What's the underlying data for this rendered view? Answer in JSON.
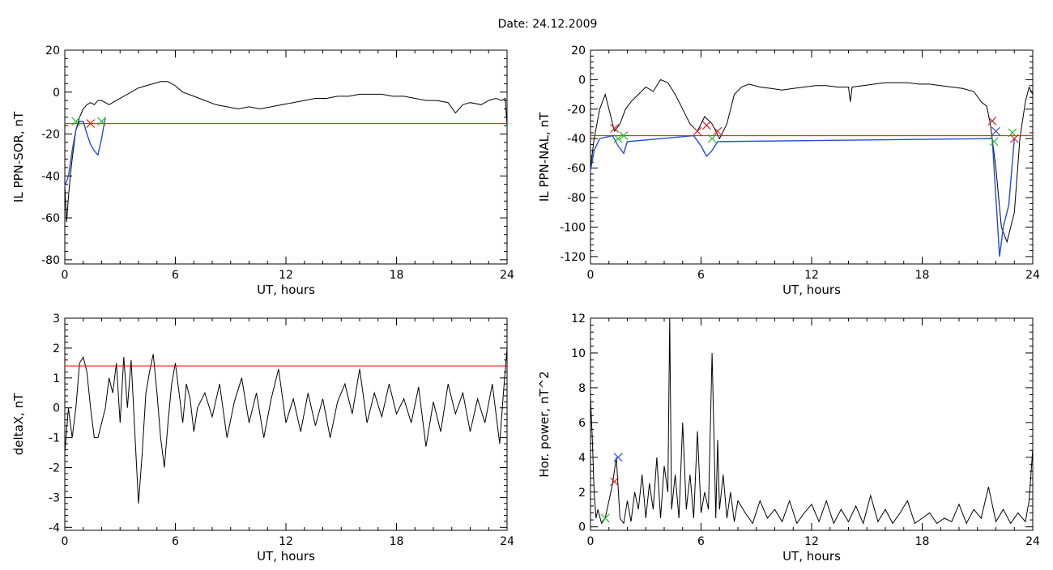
{
  "page_title": "Date:  24.12.2009",
  "colors": {
    "axis": "#000000",
    "signal": "#000000",
    "threshold": "#ff0000",
    "substorm": "#1f4fd8",
    "marker_start": "#22bb22",
    "marker_peak": "#d02020",
    "marker_blue": "#1f4fd8"
  },
  "chart_data": [
    {
      "type": "line",
      "xlabel": "UT, hours",
      "ylabel": "IL PPN-SOR, nT",
      "xlim": [
        0,
        24
      ],
      "ylim": [
        -82,
        20
      ],
      "xticks": [
        0,
        6,
        12,
        18,
        24
      ],
      "yticks": [
        -80,
        -60,
        -40,
        -20,
        0,
        20
      ],
      "threshold": -15,
      "series": [
        {
          "x": [
            0,
            0.1,
            0.2,
            0.3,
            0.4,
            0.5,
            0.6,
            0.8,
            1.0,
            1.2,
            1.4,
            1.6,
            1.8,
            2.0,
            2.2,
            2.4,
            2.8,
            3.2,
            3.6,
            4.0,
            4.4,
            4.8,
            5.2,
            5.6,
            6.0,
            6.4,
            7.0,
            7.6,
            8.2,
            8.8,
            9.4,
            10.0,
            10.6,
            11.2,
            11.8,
            12.4,
            13.0,
            13.6,
            14.2,
            14.8,
            15.4,
            16.0,
            16.6,
            17.2,
            17.8,
            18.4,
            19.0,
            19.6,
            20.2,
            20.8,
            21.2,
            21.6,
            22.0,
            22.6,
            23.0,
            23.4,
            23.7,
            23.9,
            24.0
          ],
          "y": [
            -45,
            -62,
            -50,
            -40,
            -32,
            -25,
            -18,
            -12,
            -8,
            -6,
            -5,
            -6,
            -4,
            -4,
            -5,
            -6,
            -4,
            -2,
            0,
            2,
            3,
            4,
            5,
            5,
            3,
            0,
            -2,
            -4,
            -6,
            -7,
            -8,
            -7,
            -8,
            -7,
            -6,
            -5,
            -4,
            -3,
            -3,
            -2,
            -2,
            -1,
            -1,
            -1,
            -2,
            -2,
            -3,
            -4,
            -4,
            -5,
            -10,
            -6,
            -5,
            -6,
            -4,
            -3,
            -4,
            -3,
            -16
          ]
        },
        {
          "x": [
            0.0,
            0.2,
            0.4,
            0.6,
            0.8,
            1.0,
            1.2,
            1.4,
            1.6,
            1.8,
            2.0,
            2.2
          ],
          "y": [
            -45,
            -40,
            -28,
            -18,
            -14,
            -14,
            -20,
            -25,
            -28,
            -30,
            -22,
            -12
          ]
        }
      ],
      "markers": [
        {
          "x": 0.6,
          "y": -14,
          "kind": "start"
        },
        {
          "x": 1.4,
          "y": -15,
          "kind": "peak"
        },
        {
          "x": 2.0,
          "y": -14,
          "kind": "start"
        }
      ]
    },
    {
      "type": "line",
      "xlabel": "UT, hours",
      "ylabel": "IL PPN-NAL, nT",
      "xlim": [
        0,
        24
      ],
      "ylim": [
        -125,
        20
      ],
      "xticks": [
        0,
        6,
        12,
        18,
        24
      ],
      "yticks": [
        -120,
        -100,
        -80,
        -60,
        -40,
        -20,
        0,
        20
      ],
      "threshold": -38,
      "series": [
        {
          "x": [
            0,
            0.2,
            0.5,
            0.8,
            1.0,
            1.3,
            1.6,
            1.9,
            2.2,
            2.6,
            3.0,
            3.4,
            3.8,
            4.2,
            4.6,
            5.0,
            5.4,
            5.8,
            6.2,
            6.6,
            7.0,
            7.4,
            7.8,
            8.2,
            8.6,
            9.2,
            9.8,
            10.4,
            11.0,
            11.6,
            12.2,
            12.8,
            13.4,
            14.0,
            14.1,
            14.2,
            14.8,
            15.4,
            16.0,
            16.6,
            17.2,
            17.8,
            18.4,
            19.0,
            19.6,
            20.2,
            20.8,
            21.2,
            21.5,
            21.7,
            22.0,
            22.3,
            22.6,
            23.0,
            23.3,
            23.6,
            23.8,
            24.0
          ],
          "y": [
            -60,
            -40,
            -20,
            -10,
            -20,
            -35,
            -30,
            -20,
            -15,
            -10,
            -5,
            -8,
            0,
            -2,
            -10,
            -20,
            -30,
            -35,
            -25,
            -30,
            -40,
            -30,
            -10,
            -5,
            -3,
            -5,
            -6,
            -7,
            -6,
            -5,
            -4,
            -4,
            -5,
            -5,
            -15,
            -5,
            -4,
            -3,
            -2,
            -2,
            -2,
            -3,
            -3,
            -4,
            -5,
            -6,
            -8,
            -15,
            -18,
            -30,
            -60,
            -100,
            -110,
            -90,
            -40,
            -15,
            -5,
            -10
          ]
        },
        {
          "x": [
            0.0,
            0.2,
            0.5,
            1.2,
            1.5,
            1.8,
            2.0,
            5.6,
            6.0,
            6.3,
            6.6,
            6.9,
            21.8,
            22.0,
            22.2,
            22.4,
            22.7,
            23.0
          ],
          "y": [
            -62,
            -48,
            -40,
            -38,
            -45,
            -50,
            -42,
            -38,
            -45,
            -52,
            -48,
            -42,
            -40,
            -80,
            -120,
            -100,
            -85,
            -40
          ]
        }
      ],
      "markers": [
        {
          "x": 1.3,
          "y": -33,
          "kind": "peak"
        },
        {
          "x": 1.5,
          "y": -40,
          "kind": "start"
        },
        {
          "x": 1.8,
          "y": -38,
          "kind": "start"
        },
        {
          "x": 5.8,
          "y": -35,
          "kind": "peak"
        },
        {
          "x": 6.3,
          "y": -31,
          "kind": "peak"
        },
        {
          "x": 6.6,
          "y": -40,
          "kind": "start"
        },
        {
          "x": 6.9,
          "y": -35,
          "kind": "peak"
        },
        {
          "x": 21.8,
          "y": -28,
          "kind": "peak"
        },
        {
          "x": 21.9,
          "y": -42,
          "kind": "start"
        },
        {
          "x": 22.0,
          "y": -35,
          "kind": "blue"
        },
        {
          "x": 22.9,
          "y": -36,
          "kind": "start"
        },
        {
          "x": 23.0,
          "y": -40,
          "kind": "peak"
        }
      ]
    },
    {
      "type": "line",
      "xlabel": "UT, hours",
      "ylabel": "deltaX, nT",
      "xlim": [
        0,
        24
      ],
      "ylim": [
        -4.1,
        3
      ],
      "xticks": [
        0,
        6,
        12,
        18,
        24
      ],
      "yticks": [
        -4,
        -3,
        -2,
        -1,
        0,
        1,
        2,
        3
      ],
      "threshold": 1.4,
      "series": [
        {
          "x": [
            0,
            0.2,
            0.4,
            0.6,
            0.8,
            1.0,
            1.2,
            1.4,
            1.6,
            1.8,
            2.0,
            2.2,
            2.4,
            2.6,
            2.8,
            3.0,
            3.2,
            3.4,
            3.6,
            3.8,
            4.0,
            4.2,
            4.4,
            4.6,
            4.8,
            5.0,
            5.2,
            5.4,
            5.6,
            5.8,
            6.0,
            6.2,
            6.4,
            6.6,
            6.8,
            7.0,
            7.2,
            7.6,
            8.0,
            8.4,
            8.8,
            9.2,
            9.6,
            10.0,
            10.4,
            10.8,
            11.2,
            11.6,
            12.0,
            12.4,
            12.8,
            13.2,
            13.6,
            14.0,
            14.4,
            14.8,
            15.2,
            15.6,
            16.0,
            16.4,
            16.8,
            17.2,
            17.6,
            18.0,
            18.4,
            18.8,
            19.2,
            19.6,
            20.0,
            20.4,
            20.8,
            21.2,
            21.6,
            22.0,
            22.4,
            22.8,
            23.2,
            23.6,
            23.8,
            24.0
          ],
          "y": [
            -1.5,
            0,
            -1,
            0,
            1.5,
            1.7,
            1.2,
            0,
            -1,
            -1,
            -0.5,
            0,
            1,
            0.5,
            1.5,
            -0.5,
            1.7,
            0,
            1.6,
            -0.8,
            -3.2,
            -1.5,
            0.5,
            1.2,
            1.8,
            0.5,
            -1,
            -2,
            -0.5,
            0.8,
            1.5,
            0.5,
            -0.5,
            0.8,
            0.3,
            -0.8,
            0,
            0.5,
            -0.3,
            0.8,
            -1,
            0.2,
            1,
            -0.5,
            0.5,
            -1,
            0.3,
            1.3,
            -0.5,
            0.3,
            -0.8,
            0.5,
            -0.6,
            0.3,
            -1,
            0.2,
            0.8,
            -0.2,
            1.3,
            -0.5,
            0.5,
            -0.3,
            0.8,
            -0.2,
            0.3,
            -0.5,
            0.7,
            -1.3,
            0.2,
            -0.8,
            0.8,
            -0.2,
            0.5,
            -0.8,
            0.3,
            -0.5,
            0.8,
            -1.2,
            0.5,
            2
          ]
        }
      ],
      "markers": []
    },
    {
      "type": "line",
      "xlabel": "UT, hours",
      "ylabel": "Hor. power, nT^2",
      "xlim": [
        0,
        24
      ],
      "ylim": [
        -0.2,
        12
      ],
      "xticks": [
        0,
        6,
        12,
        18,
        24
      ],
      "yticks": [
        0,
        2,
        4,
        6,
        8,
        10,
        12
      ],
      "threshold": null,
      "series": [
        {
          "x": [
            0,
            0.1,
            0.2,
            0.3,
            0.4,
            0.6,
            0.8,
            1.0,
            1.2,
            1.4,
            1.6,
            1.8,
            2.0,
            2.2,
            2.4,
            2.6,
            2.8,
            3.0,
            3.2,
            3.4,
            3.6,
            3.8,
            4.0,
            4.2,
            4.3,
            4.4,
            4.6,
            4.8,
            5.0,
            5.2,
            5.4,
            5.6,
            5.8,
            6.0,
            6.2,
            6.4,
            6.6,
            6.8,
            6.9,
            7.0,
            7.2,
            7.4,
            7.6,
            7.8,
            8.0,
            8.4,
            8.8,
            9.2,
            9.6,
            10.0,
            10.4,
            10.8,
            11.2,
            11.6,
            12.0,
            12.4,
            12.8,
            13.2,
            13.6,
            14.0,
            14.4,
            14.8,
            15.2,
            15.6,
            16.0,
            16.4,
            16.8,
            17.2,
            17.6,
            18.0,
            18.4,
            18.8,
            19.2,
            19.6,
            20.0,
            20.4,
            20.8,
            21.2,
            21.6,
            22.0,
            22.4,
            22.8,
            23.2,
            23.6,
            23.8,
            24.0
          ],
          "y": [
            7.5,
            5,
            2,
            0.5,
            1,
            0.2,
            0.5,
            1.5,
            2.5,
            4,
            0.5,
            0.2,
            1.5,
            0.3,
            2,
            1,
            3,
            0.5,
            2.5,
            1,
            4,
            0.5,
            3.5,
            2,
            12,
            1,
            3,
            0.5,
            6,
            1,
            3,
            0.5,
            5.5,
            0.8,
            2,
            1,
            10,
            0.5,
            5,
            1,
            3,
            0.5,
            2,
            0.3,
            1.5,
            0.8,
            0.2,
            1.5,
            0.5,
            1,
            0.3,
            1.5,
            0.2,
            0.8,
            1.3,
            0.3,
            1.5,
            0.2,
            1,
            0.3,
            1.2,
            0.2,
            1.8,
            0.3,
            1,
            0.2,
            0.8,
            1.5,
            0.2,
            0.5,
            0.8,
            0.2,
            0.5,
            0.3,
            1.3,
            0.2,
            1,
            0.5,
            2.3,
            0.3,
            1,
            0.2,
            0.8,
            0.3,
            1.5,
            4.5
          ]
        }
      ],
      "markers": [
        {
          "x": 1.3,
          "y": 2.6,
          "kind": "peak"
        },
        {
          "x": 1.5,
          "y": 4,
          "kind": "blue"
        },
        {
          "x": 0.8,
          "y": 0.5,
          "kind": "start"
        }
      ]
    }
  ]
}
